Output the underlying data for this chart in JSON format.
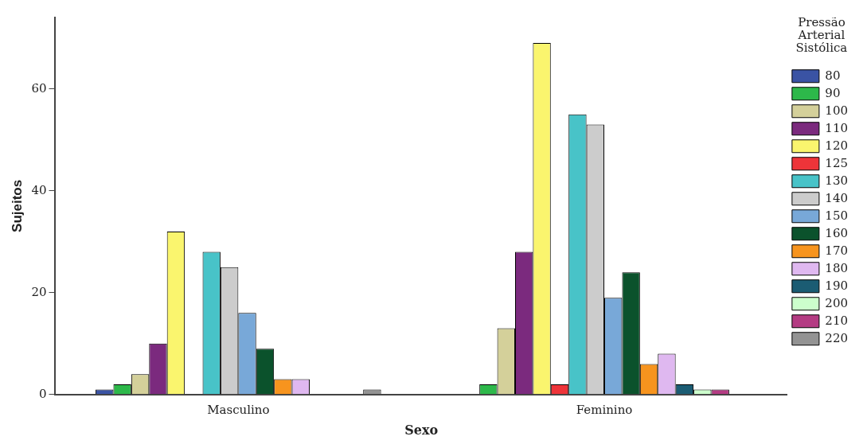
{
  "chart_data": {
    "type": "bar",
    "xlabel": "Sexo",
    "ylabel": "Sujeitos",
    "legend_title": "Pressão Arterial Sistólica",
    "categories": [
      "Masculino",
      "Feminino"
    ],
    "series": [
      {
        "name": "80",
        "color": "#3a53a4",
        "values": [
          1,
          0
        ]
      },
      {
        "name": "90",
        "color": "#2db84a",
        "values": [
          2,
          2
        ]
      },
      {
        "name": "100",
        "color": "#d4d09a",
        "values": [
          4,
          13
        ]
      },
      {
        "name": "110",
        "color": "#7b2a7e",
        "values": [
          10,
          28
        ]
      },
      {
        "name": "120",
        "color": "#faf56e",
        "values": [
          32,
          69
        ]
      },
      {
        "name": "125",
        "color": "#ee3439",
        "values": [
          0,
          2
        ]
      },
      {
        "name": "130",
        "color": "#48c3c8",
        "values": [
          28,
          55
        ]
      },
      {
        "name": "140",
        "color": "#cccccc",
        "values": [
          25,
          53
        ]
      },
      {
        "name": "150",
        "color": "#78a8d8",
        "values": [
          16,
          19
        ]
      },
      {
        "name": "160",
        "color": "#0b522c",
        "values": [
          9,
          24
        ]
      },
      {
        "name": "170",
        "color": "#f7941e",
        "values": [
          3,
          6
        ]
      },
      {
        "name": "180",
        "color": "#dfb8f0",
        "values": [
          3,
          8
        ]
      },
      {
        "name": "190",
        "color": "#1b5c73",
        "values": [
          0,
          2
        ]
      },
      {
        "name": "200",
        "color": "#ccffcc",
        "values": [
          0,
          1
        ]
      },
      {
        "name": "210",
        "color": "#b43b83",
        "values": [
          0,
          1
        ]
      },
      {
        "name": "220",
        "color": "#939393",
        "values": [
          1,
          0
        ]
      }
    ],
    "ylim": [
      0,
      74
    ],
    "yticks": [
      0,
      20,
      40,
      60
    ],
    "grid": false,
    "legend": "right"
  }
}
